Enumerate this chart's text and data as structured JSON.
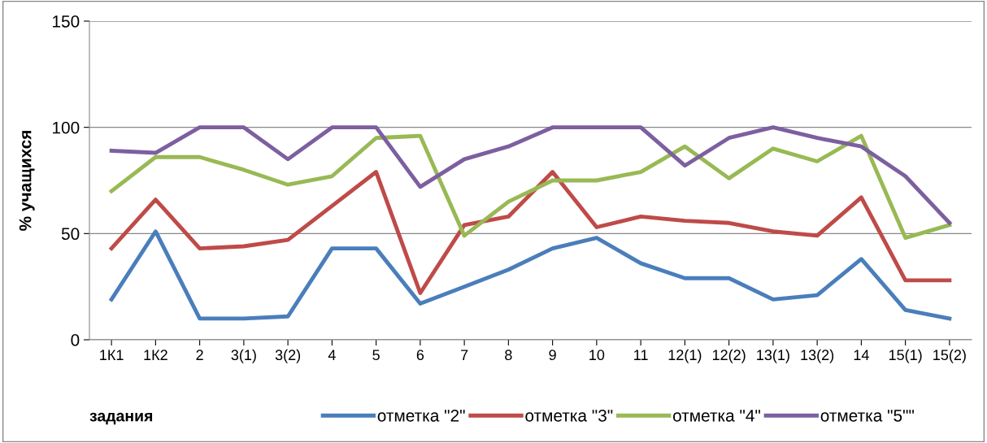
{
  "chart_data": {
    "type": "line",
    "categories": [
      "1К1",
      "1К2",
      "2",
      "3(1)",
      "3(2)",
      "4",
      "5",
      "6",
      "7",
      "8",
      "9",
      "10",
      "11",
      "12(1)",
      "12(2)",
      "13(1)",
      "13(2)",
      "14",
      "15(1)",
      "15(2)"
    ],
    "series": [
      {
        "name": "отметка \"2\"",
        "color": "#4a7ebb",
        "values": [
          19,
          51,
          10,
          10,
          11,
          43,
          43,
          17,
          25,
          33,
          43,
          48,
          36,
          29,
          29,
          19,
          21,
          38,
          14,
          10
        ]
      },
      {
        "name": "отметка \"3\"",
        "color": "#be4b48",
        "values": [
          43,
          66,
          43,
          44,
          47,
          63,
          79,
          22,
          54,
          58,
          79,
          53,
          58,
          56,
          55,
          51,
          49,
          67,
          28,
          28
        ]
      },
      {
        "name": "отметка \"4\"",
        "color": "#98b954",
        "values": [
          70,
          86,
          86,
          80,
          73,
          77,
          95,
          96,
          49,
          65,
          75,
          75,
          79,
          91,
          76,
          90,
          84,
          96,
          48,
          54
        ]
      },
      {
        "name": "отметка \"5\"\"",
        "color": "#7d5fa0",
        "values": [
          89,
          88,
          100,
          100,
          85,
          100,
          100,
          72,
          85,
          91,
          100,
          100,
          100,
          82,
          95,
          100,
          95,
          91,
          77,
          55
        ]
      }
    ],
    "xlabel": "задания",
    "ylabel": "% учащихся",
    "ylim": [
      0,
      150
    ],
    "yticks": [
      0,
      50,
      100,
      150
    ],
    "grid": "y",
    "legend": "bottom",
    "marker": "none",
    "line_style": "solid"
  }
}
